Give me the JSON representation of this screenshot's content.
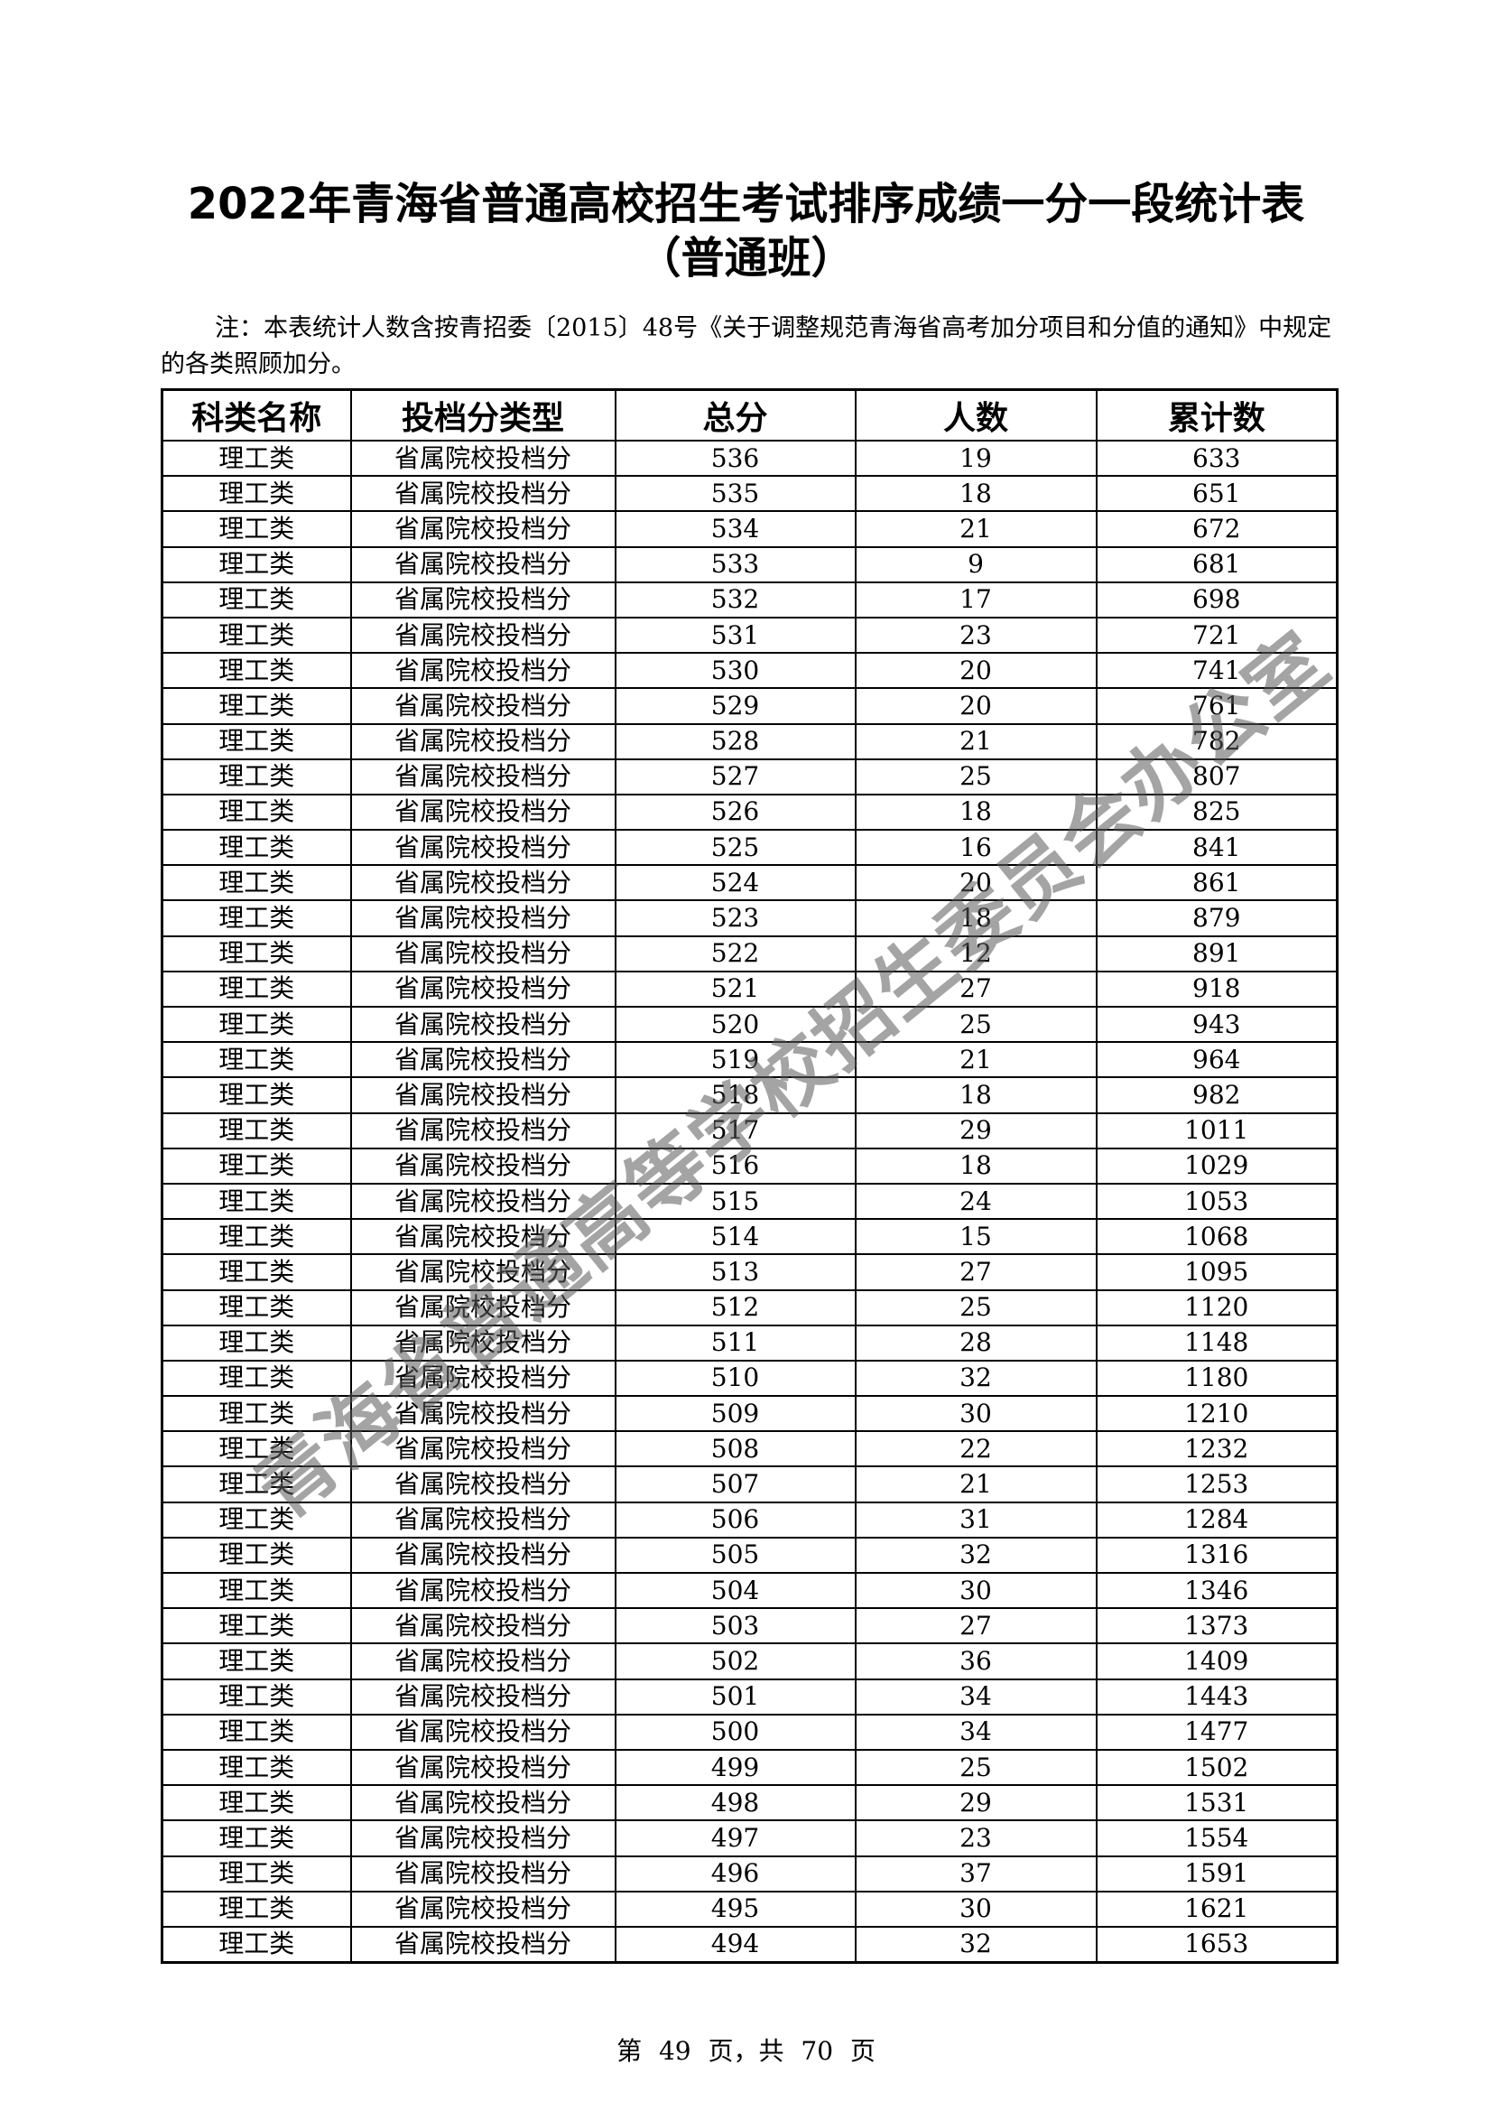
{
  "document": {
    "title_line1": "2022年青海省普通高校招生考试排序成绩一分一段统计表",
    "title_line2": "（普通班）",
    "note": "注：本表统计人数含按青招委〔2015〕48号《关于调整规范青海省高考加分项目和分值的通知》中规定的各类照顾加分。",
    "footer": "第 49 页，共 70 页",
    "watermark": "青海省普通高等学校招生委员会办公室"
  },
  "table": {
    "headers": [
      "科类名称",
      "投档分类型",
      "总分",
      "人数",
      "累计数"
    ],
    "category": "理工类",
    "score_type": "省属院校投档分",
    "rows": [
      [
        536,
        19,
        633
      ],
      [
        535,
        18,
        651
      ],
      [
        534,
        21,
        672
      ],
      [
        533,
        9,
        681
      ],
      [
        532,
        17,
        698
      ],
      [
        531,
        23,
        721
      ],
      [
        530,
        20,
        741
      ],
      [
        529,
        20,
        761
      ],
      [
        528,
        21,
        782
      ],
      [
        527,
        25,
        807
      ],
      [
        526,
        18,
        825
      ],
      [
        525,
        16,
        841
      ],
      [
        524,
        20,
        861
      ],
      [
        523,
        18,
        879
      ],
      [
        522,
        12,
        891
      ],
      [
        521,
        27,
        918
      ],
      [
        520,
        25,
        943
      ],
      [
        519,
        21,
        964
      ],
      [
        518,
        18,
        982
      ],
      [
        517,
        29,
        1011
      ],
      [
        516,
        18,
        1029
      ],
      [
        515,
        24,
        1053
      ],
      [
        514,
        15,
        1068
      ],
      [
        513,
        27,
        1095
      ],
      [
        512,
        25,
        1120
      ],
      [
        511,
        28,
        1148
      ],
      [
        510,
        32,
        1180
      ],
      [
        509,
        30,
        1210
      ],
      [
        508,
        22,
        1232
      ],
      [
        507,
        21,
        1253
      ],
      [
        506,
        31,
        1284
      ],
      [
        505,
        32,
        1316
      ],
      [
        504,
        30,
        1346
      ],
      [
        503,
        27,
        1373
      ],
      [
        502,
        36,
        1409
      ],
      [
        501,
        34,
        1443
      ],
      [
        500,
        34,
        1477
      ],
      [
        499,
        25,
        1502
      ],
      [
        498,
        29,
        1531
      ],
      [
        497,
        23,
        1554
      ],
      [
        496,
        37,
        1591
      ],
      [
        495,
        30,
        1621
      ],
      [
        494,
        32,
        1653
      ]
    ]
  }
}
